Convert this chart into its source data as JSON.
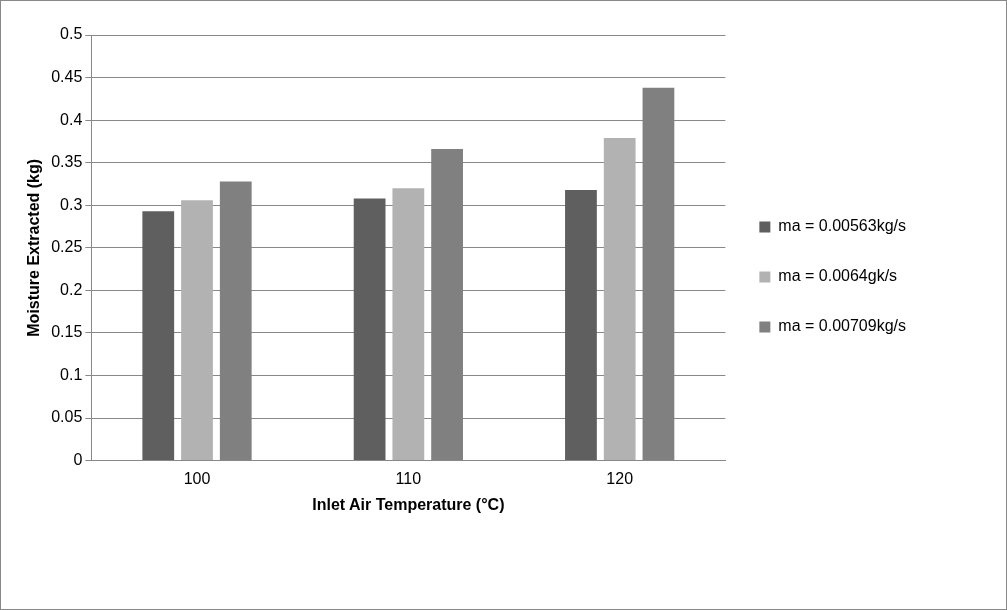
{
  "chart_data": {
    "type": "bar",
    "xlabel": "Inlet Air Temperature (°C)",
    "ylabel": "Moisture Extracted (kg)",
    "categories": [
      "100",
      "110",
      "120"
    ],
    "series": [
      {
        "name": "ma = 0.00563kg/s",
        "color": "#5f5f5f",
        "values": [
          0.293,
          0.308,
          0.318
        ]
      },
      {
        "name": "ma = 0.0064gk/s",
        "color": "#b2b2b2",
        "values": [
          0.306,
          0.32,
          0.379
        ]
      },
      {
        "name": "ma = 0.00709kg/s",
        "color": "#808080",
        "values": [
          0.328,
          0.366,
          0.438
        ]
      }
    ],
    "ylim": [
      0,
      0.5
    ],
    "yticks": [
      0,
      0.05,
      0.1,
      0.15,
      0.2,
      0.25,
      0.3,
      0.35,
      0.4,
      0.45,
      0.5
    ],
    "grid": "y",
    "legend": "right"
  }
}
